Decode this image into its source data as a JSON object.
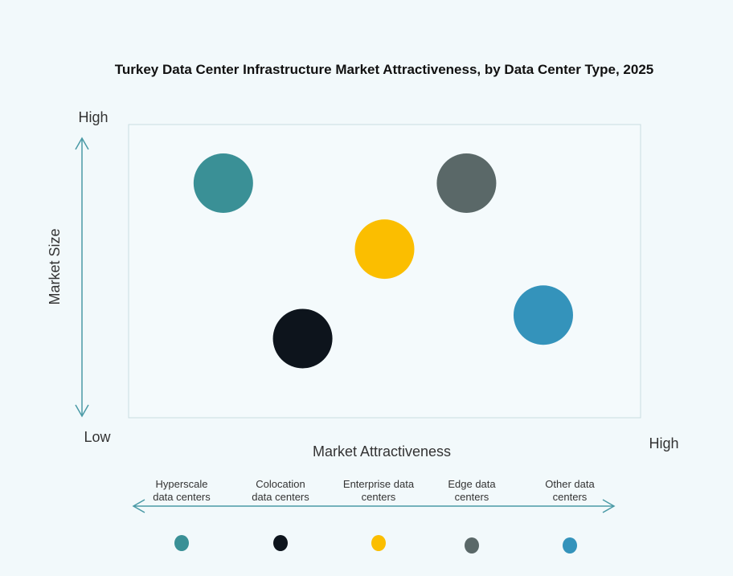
{
  "chart_data": {
    "type": "scatter",
    "title": "Turkey Data Center Infrastructure  Market Attractiveness,  by Data Center Type, 2025",
    "xlabel": "Market Attractiveness",
    "ylabel": "Market Size",
    "x_low_label": "Low",
    "x_high_label": "High",
    "y_high_label": "High",
    "xlim": [
      0,
      100
    ],
    "ylim": [
      0,
      100
    ],
    "grid": false,
    "legend_placement": "bottom",
    "series": [
      {
        "name": "Hyperscale data centers",
        "x": 18.5,
        "y": 80,
        "color": "#3a9096"
      },
      {
        "name": "Colocation data centers",
        "x": 34,
        "y": 27,
        "color": "#0d141c"
      },
      {
        "name": "Enterprise data centers",
        "x": 50,
        "y": 57.5,
        "color": "#fbbe00"
      },
      {
        "name": "Edge data centers",
        "x": 66,
        "y": 80,
        "color": "#5a6868"
      },
      {
        "name": "Other data centers",
        "x": 81,
        "y": 35,
        "color": "#3493bb"
      }
    ],
    "legend_lines": [
      [
        "Hyperscale",
        "data centers"
      ],
      [
        "Colocation",
        "data centers"
      ],
      [
        "Enterprise data",
        "centers"
      ],
      [
        "Edge data",
        "centers"
      ],
      [
        "Other data",
        "centers"
      ]
    ]
  }
}
